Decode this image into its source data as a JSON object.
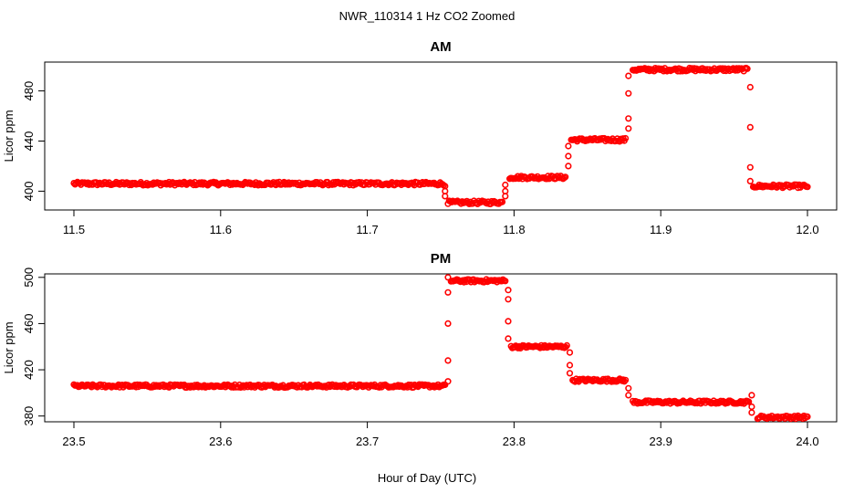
{
  "suptitle": "NWR_110314  1 Hz CO2 Zoomed",
  "xlabel_shared": "Hour of Day (UTC)",
  "point_color": "#ff0000",
  "chart_data": [
    {
      "type": "scatter",
      "title": "AM",
      "ylabel": "Licor ppm",
      "xlim": [
        11.5,
        12.0
      ],
      "ylim": [
        385,
        503
      ],
      "xticks": [
        "11.5",
        "11.6",
        "11.7",
        "11.8",
        "11.9",
        "12.0"
      ],
      "yticks": [
        "400",
        "440",
        "480"
      ],
      "marker": "open-circle",
      "segments": [
        {
          "x_start": 11.5,
          "x_end": 11.752,
          "y": 406
        },
        {
          "x_start": 11.755,
          "x_end": 11.792,
          "y": 391
        },
        {
          "x_start": 11.797,
          "x_end": 11.835,
          "y": 411
        },
        {
          "x_start": 11.839,
          "x_end": 11.876,
          "y": 441
        },
        {
          "x_start": 11.881,
          "x_end": 11.959,
          "y": 497
        },
        {
          "x_start": 11.963,
          "x_end": 12.0,
          "y": 404
        }
      ],
      "transitions": [
        {
          "x": 11.753,
          "y": [
            404,
            400,
            396
          ]
        },
        {
          "x": 11.794,
          "y": [
            396,
            400,
            405
          ]
        },
        {
          "x": 11.837,
          "y": [
            420,
            428,
            436
          ]
        },
        {
          "x": 11.878,
          "y": [
            450,
            458,
            478,
            492
          ]
        },
        {
          "x": 11.961,
          "y": [
            483,
            451,
            419,
            408
          ]
        }
      ]
    },
    {
      "type": "scatter",
      "title": "PM",
      "ylabel": "Licor ppm",
      "xlim": [
        23.5,
        24.0
      ],
      "ylim": [
        375,
        503
      ],
      "xticks": [
        "23.5",
        "23.6",
        "23.7",
        "23.8",
        "23.9",
        "24.0"
      ],
      "yticks": [
        "380",
        "420",
        "460",
        "500"
      ],
      "marker": "open-circle",
      "segments": [
        {
          "x_start": 23.5,
          "x_end": 23.753,
          "y": 406
        },
        {
          "x_start": 23.757,
          "x_end": 23.794,
          "y": 497
        },
        {
          "x_start": 23.798,
          "x_end": 23.836,
          "y": 440
        },
        {
          "x_start": 23.84,
          "x_end": 23.876,
          "y": 411
        },
        {
          "x_start": 23.881,
          "x_end": 23.96,
          "y": 392
        },
        {
          "x_start": 23.966,
          "x_end": 24.0,
          "y": 379
        }
      ],
      "transitions": [
        {
          "x": 23.755,
          "y": [
            410,
            428,
            460,
            487,
            500
          ]
        },
        {
          "x": 23.796,
          "y": [
            489,
            481,
            462,
            447
          ]
        },
        {
          "x": 23.838,
          "y": [
            435,
            424,
            417
          ]
        },
        {
          "x": 23.878,
          "y": [
            404,
            398
          ]
        },
        {
          "x": 23.962,
          "y": [
            398,
            388,
            383
          ]
        }
      ]
    }
  ]
}
